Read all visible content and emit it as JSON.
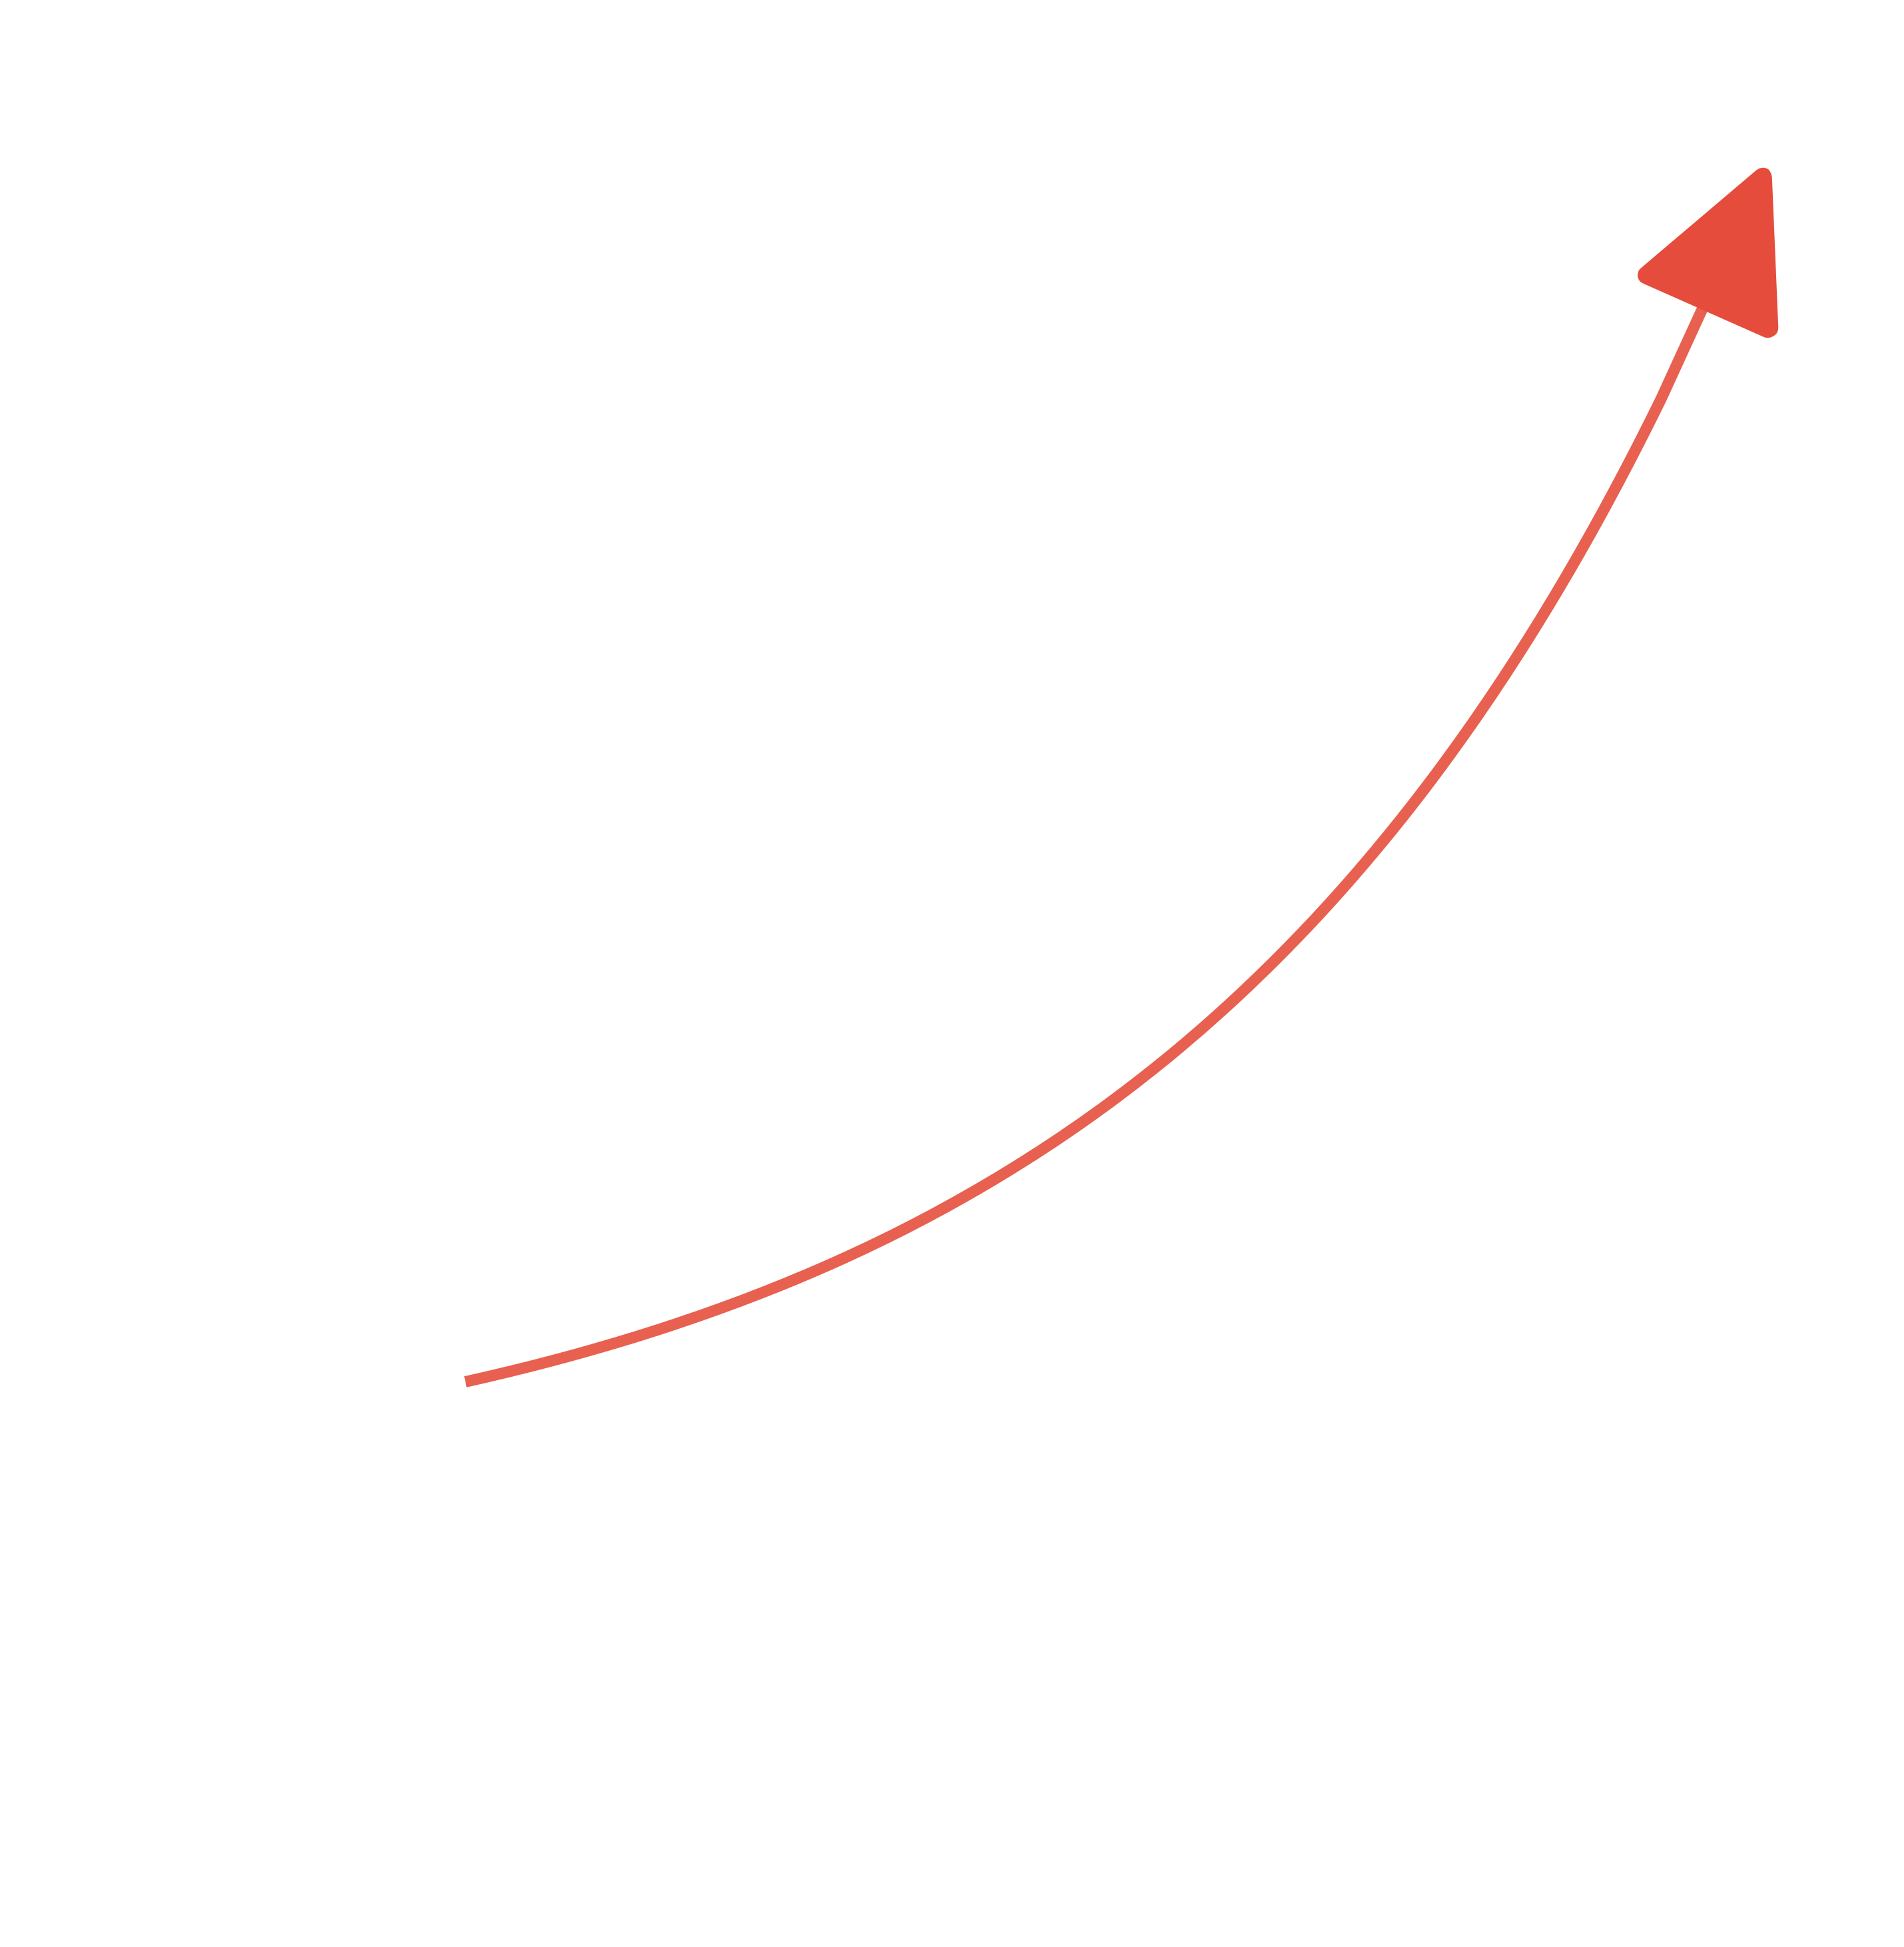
{
  "arrow": {
    "direction": "up-right",
    "shape": "curved",
    "colors": {
      "stroke": "#E8604F",
      "head": "#E64C3C",
      "background": "#FFFFFF"
    }
  }
}
